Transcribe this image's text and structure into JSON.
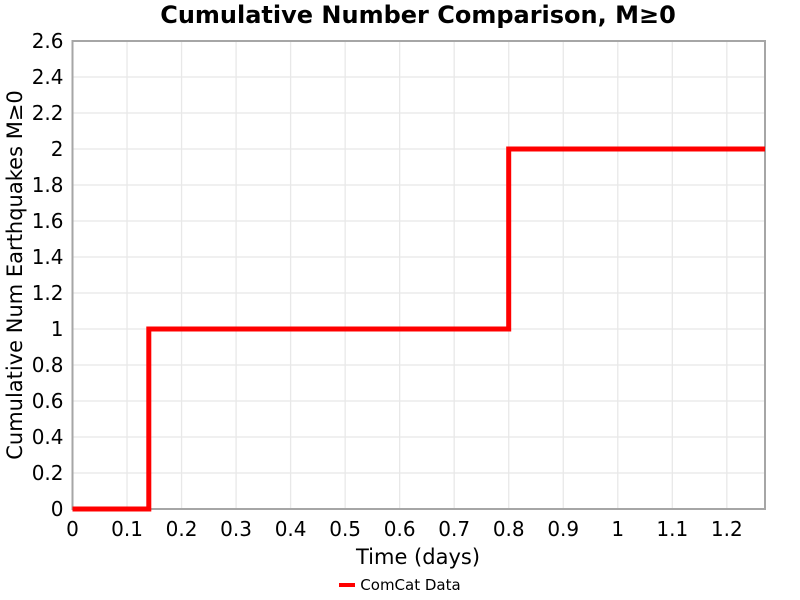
{
  "chart_data": {
    "type": "step-line",
    "title": "Cumulative Number Comparison, M≥0",
    "xlabel": "Time (days)",
    "ylabel": "Cumulative Num Earthquakes M≥0",
    "xlim": [
      0,
      1.27
    ],
    "ylim": [
      0,
      2.6
    ],
    "x_ticks": [
      0,
      0.1,
      0.2,
      0.3,
      0.4,
      0.5,
      0.6,
      0.7,
      0.8,
      0.9,
      1,
      1.1,
      1.2
    ],
    "x_tick_labels": [
      "0",
      "0.1",
      "0.2",
      "0.3",
      "0.4",
      "0.5",
      "0.6",
      "0.7",
      "0.8",
      "0.9",
      "1",
      "1.1",
      "1.2"
    ],
    "y_ticks": [
      0,
      0.2,
      0.4,
      0.6,
      0.8,
      1,
      1.2,
      1.4,
      1.6,
      1.8,
      2,
      2.2,
      2.4,
      2.6
    ],
    "y_tick_labels": [
      "0",
      "0.2",
      "0.4",
      "0.6",
      "0.8",
      "1",
      "1.2",
      "1.4",
      "1.6",
      "1.8",
      "2",
      "2.2",
      "2.4",
      "2.6"
    ],
    "grid": true,
    "legend": {
      "position": "lower center",
      "entries": [
        {
          "label": "ComCat Data",
          "color": "#ff0000"
        }
      ]
    },
    "series": [
      {
        "name": "ComCat Data",
        "color": "#ff0000",
        "line_width": 5,
        "points": [
          [
            0,
            0
          ],
          [
            0.14,
            0
          ],
          [
            0.14,
            1
          ],
          [
            0.8,
            1
          ],
          [
            0.8,
            2
          ],
          [
            1.27,
            2
          ]
        ],
        "events": [
          {
            "time_days": 0.14,
            "cumulative": 1
          },
          {
            "time_days": 0.8,
            "cumulative": 2
          }
        ]
      }
    ],
    "colors": {
      "line": "#ff0000",
      "grid": "#e8e8e8",
      "spine": "#a6a6a6",
      "text": "#000000",
      "background": "#ffffff"
    }
  }
}
